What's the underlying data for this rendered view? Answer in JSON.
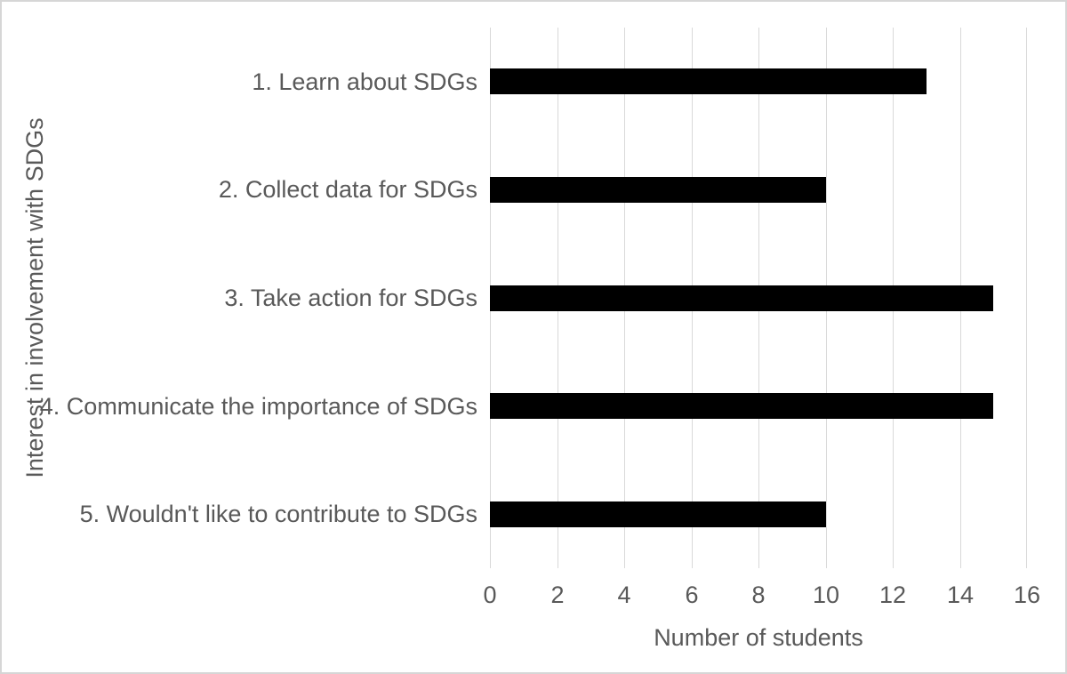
{
  "chart_data": {
    "type": "bar",
    "orientation": "horizontal",
    "title": "",
    "categories": [
      "1. Learn about SDGs",
      "2. Collect data for SDGs",
      "3. Take action for SDGs",
      "4. Communicate the importance of SDGs",
      "5. Wouldn't like to contribute to SDGs"
    ],
    "values": [
      13,
      10,
      15,
      15,
      10
    ],
    "xlabel": "Number of students",
    "ylabel": "Interest in involvement with SDGs",
    "xlim": [
      0,
      16
    ],
    "xticks": [
      0,
      2,
      4,
      6,
      8,
      10,
      12,
      14,
      16
    ],
    "grid": true,
    "legend": false,
    "bar_color": "#000000",
    "gridline_color": "#d9d9d9",
    "text_color": "#595959",
    "frame_border_color": "#d6d6d6",
    "background_color": "#ffffff"
  }
}
